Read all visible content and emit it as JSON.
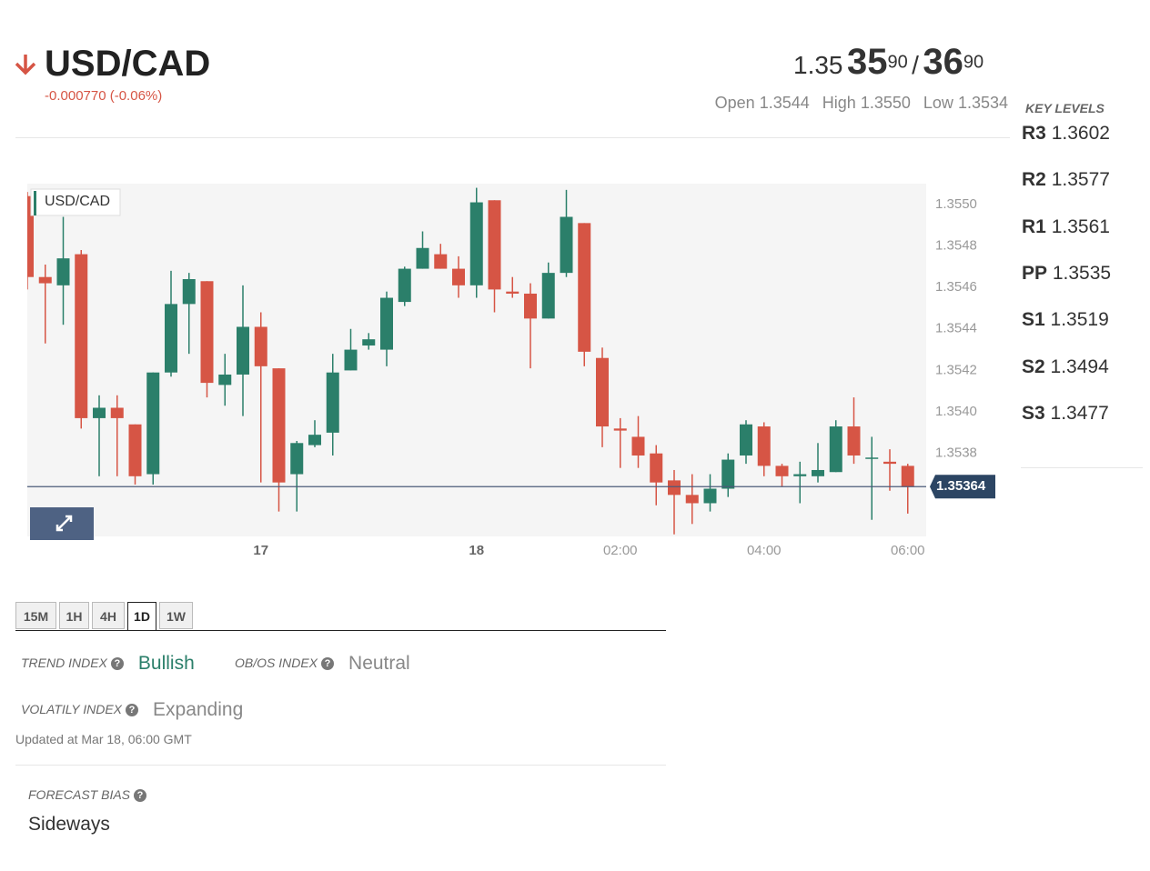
{
  "header": {
    "symbol": "USD/CAD",
    "change": "-0.000770 (-0.06%)",
    "bid_prefix": "1.35",
    "bid_big": "35",
    "bid_pip": "90",
    "separator": "/",
    "ask_big": "36",
    "ask_pip": "90",
    "stats": [
      {
        "label": "Open",
        "value": "1.3544"
      },
      {
        "label": "High",
        "value": "1.3550"
      },
      {
        "label": "Low",
        "value": "1.3534"
      }
    ]
  },
  "key_levels": {
    "title": "KEY LEVELS",
    "levels": [
      {
        "name": "R3",
        "value": "1.3602"
      },
      {
        "name": "R2",
        "value": "1.3577"
      },
      {
        "name": "R1",
        "value": "1.3561"
      },
      {
        "name": "PP",
        "value": "1.3535"
      },
      {
        "name": "S1",
        "value": "1.3519"
      },
      {
        "name": "S2",
        "value": "1.3494"
      },
      {
        "name": "S3",
        "value": "1.3477"
      }
    ]
  },
  "chart_data": {
    "type": "candlestick",
    "symbol_label": "USD/CAD",
    "categories": [
      null,
      null,
      null,
      null,
      null,
      null,
      null,
      null,
      null,
      null,
      null,
      null,
      null,
      "17",
      null,
      null,
      null,
      null,
      null,
      null,
      null,
      null,
      null,
      null,
      null,
      "18",
      null,
      null,
      null,
      null,
      null,
      null,
      null,
      "02:00",
      null,
      null,
      null,
      null,
      null,
      null,
      null,
      "04:00",
      null,
      null,
      null,
      null,
      null,
      null,
      null,
      "06:00"
    ],
    "open": [
      1.35504,
      1.35465,
      1.35461,
      1.35476,
      1.35397,
      1.35402,
      1.35394,
      1.3537,
      1.35419,
      1.35452,
      1.35463,
      1.35413,
      1.35418,
      1.35441,
      1.35421,
      1.3537,
      1.35384,
      1.3539,
      1.3542,
      1.35432,
      1.3543,
      1.35453,
      1.35469,
      1.35476,
      1.35469,
      1.35461,
      1.35502,
      1.35458,
      1.35457,
      1.35445,
      1.35467,
      1.35491,
      1.35426,
      1.35392,
      1.35388,
      1.3538,
      1.35367,
      1.3536,
      1.35356,
      1.35363,
      1.35379,
      1.35393,
      1.35374,
      1.35369,
      1.35369,
      1.35371,
      1.35393,
      1.35378,
      1.35376,
      1.35374
    ],
    "high": [
      1.35506,
      1.35471,
      1.35494,
      1.35478,
      1.35408,
      1.35408,
      1.35394,
      1.35419,
      1.35468,
      1.35467,
      1.35463,
      1.35428,
      1.35461,
      1.35448,
      1.35421,
      1.35386,
      1.35396,
      1.35428,
      1.3544,
      1.35438,
      1.35458,
      1.3547,
      1.35487,
      1.35481,
      1.35475,
      1.35508,
      1.35502,
      1.35465,
      1.35462,
      1.35472,
      1.35507,
      1.35491,
      1.35431,
      1.35397,
      1.35398,
      1.35384,
      1.35372,
      1.3537,
      1.3537,
      1.3538,
      1.35396,
      1.35395,
      1.35375,
      1.35376,
      1.35385,
      1.35396,
      1.35407,
      1.35388,
      1.35382,
      1.35375
    ],
    "low": [
      1.35459,
      1.35433,
      1.35442,
      1.35392,
      1.35369,
      1.35369,
      1.35365,
      1.35365,
      1.35417,
      1.35428,
      1.35407,
      1.35403,
      1.35398,
      1.35366,
      1.35352,
      1.35352,
      1.35383,
      1.35379,
      1.3542,
      1.3543,
      1.35422,
      1.35451,
      1.35469,
      1.35469,
      1.35455,
      1.35455,
      1.35448,
      1.35455,
      1.35421,
      1.35445,
      1.35465,
      1.35422,
      1.35383,
      1.35373,
      1.35373,
      1.35355,
      1.35341,
      1.35346,
      1.35352,
      1.35359,
      1.35375,
      1.35369,
      1.35364,
      1.35356,
      1.35366,
      1.35371,
      1.35375,
      1.35348,
      1.35362,
      1.35351
    ],
    "close": [
      1.35465,
      1.35462,
      1.35474,
      1.35397,
      1.35402,
      1.35397,
      1.35369,
      1.35419,
      1.35452,
      1.35464,
      1.35414,
      1.35418,
      1.35441,
      1.35422,
      1.35366,
      1.35385,
      1.35389,
      1.35419,
      1.3543,
      1.35435,
      1.35455,
      1.35469,
      1.35479,
      1.35469,
      1.35461,
      1.35501,
      1.35459,
      1.35457,
      1.35445,
      1.35467,
      1.35494,
      1.35429,
      1.35393,
      1.35391,
      1.35379,
      1.35366,
      1.3536,
      1.35356,
      1.35363,
      1.35377,
      1.35394,
      1.35374,
      1.35369,
      1.3537,
      1.35372,
      1.35393,
      1.35379,
      1.35378,
      1.35375,
      1.35364
    ],
    "up_color": "#2b7f6a",
    "down_color": "#d65545",
    "ylim": [
      1.3534,
      1.3551
    ],
    "yticks": [
      {
        "value": 1.355,
        "label": "1.3550"
      },
      1.3548,
      1.3546,
      1.3544,
      1.3542,
      {
        "value": 1.354,
        "label": "1.3540"
      },
      1.3538
    ],
    "last_price": 1.35364,
    "grid": false
  },
  "timeframes": {
    "tabs": [
      "15M",
      "1H",
      "4H",
      "1D",
      "1W"
    ],
    "active_index": 3
  },
  "indices": [
    {
      "label": "TREND INDEX",
      "value": "Bullish"
    },
    {
      "label": "OB/OS INDEX",
      "value": "Neutral"
    },
    {
      "label": "VOLATILY INDEX",
      "value": "Expanding"
    }
  ],
  "updated": "Updated at Mar 18, 06:00 GMT",
  "forecast": {
    "label": "FORECAST BIAS",
    "value": "Sideways"
  }
}
